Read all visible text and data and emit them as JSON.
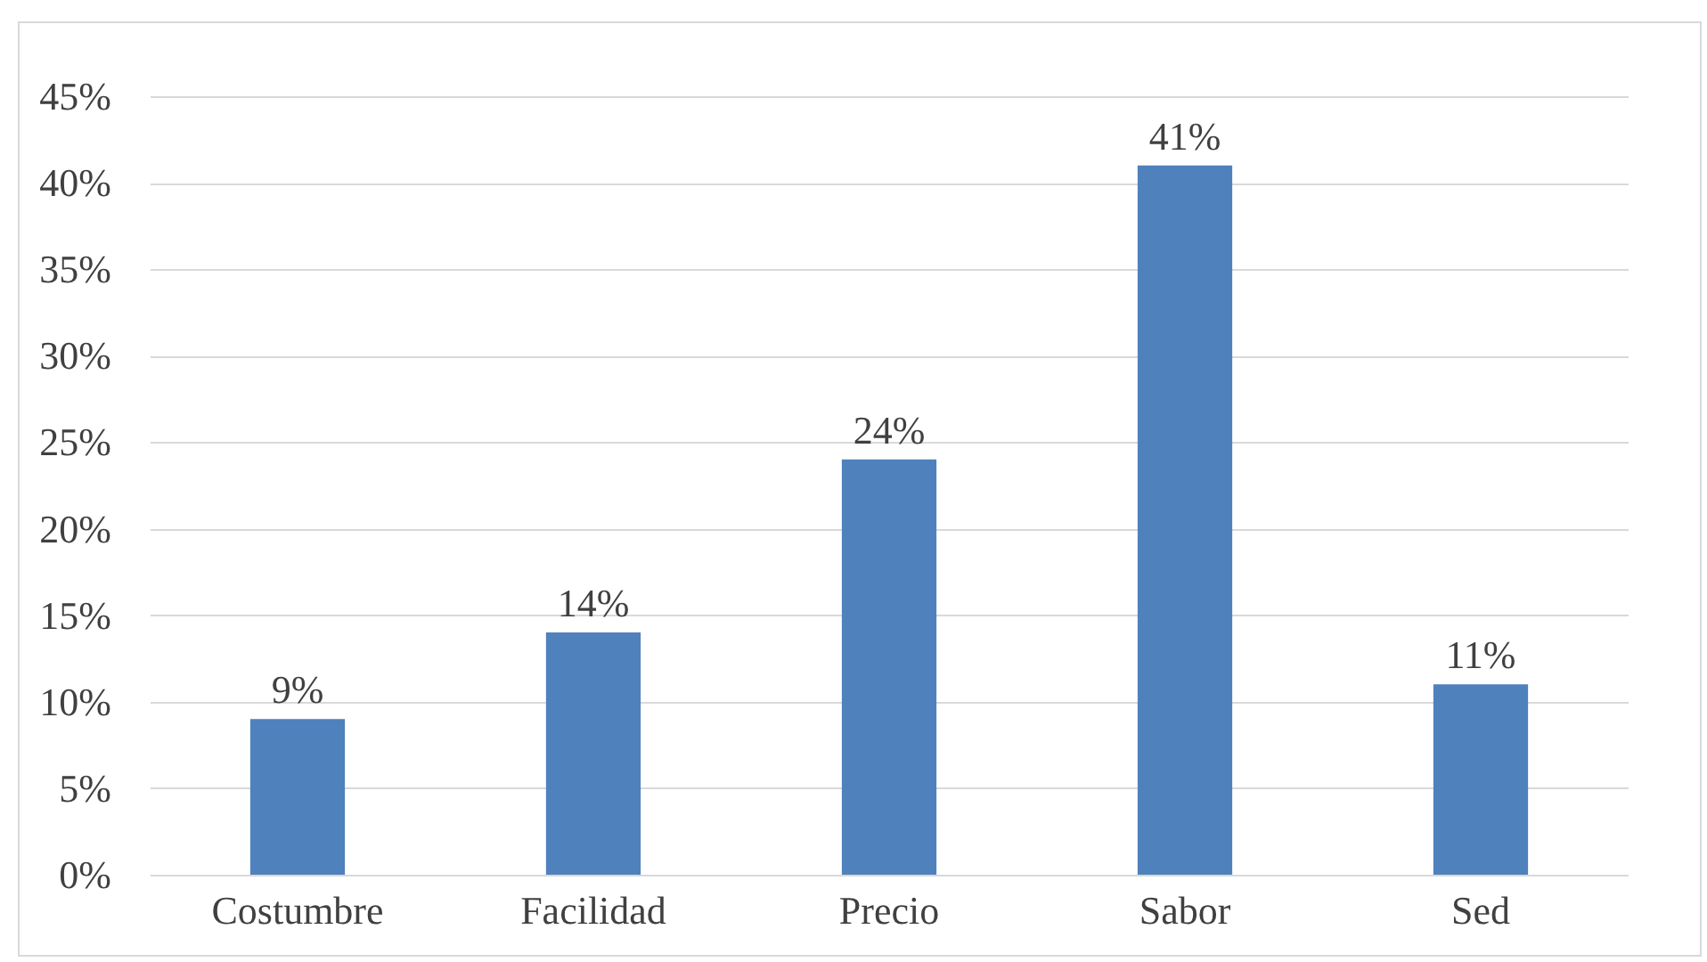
{
  "chart_data": {
    "type": "bar",
    "categories": [
      "Costumbre",
      "Facilidad",
      "Precio",
      "Sabor",
      "Sed"
    ],
    "values": [
      9,
      14,
      24,
      41,
      11
    ],
    "color": "#4f81bd",
    "value_labels": [
      "9%",
      "14%",
      "24%",
      "41%",
      "11%"
    ],
    "ylim": [
      0,
      45
    ],
    "yticks": [
      {
        "value": 0,
        "label": "0%"
      },
      {
        "value": 5,
        "label": "5%"
      },
      {
        "value": 10,
        "label": "10%"
      },
      {
        "value": 15,
        "label": "15%"
      },
      {
        "value": 20,
        "label": "20%"
      },
      {
        "value": 25,
        "label": "25%"
      },
      {
        "value": 30,
        "label": "30%"
      },
      {
        "value": 35,
        "label": "35%"
      },
      {
        "value": 40,
        "label": "40%"
      },
      {
        "value": 45,
        "label": "45%"
      }
    ],
    "grid": "y"
  }
}
